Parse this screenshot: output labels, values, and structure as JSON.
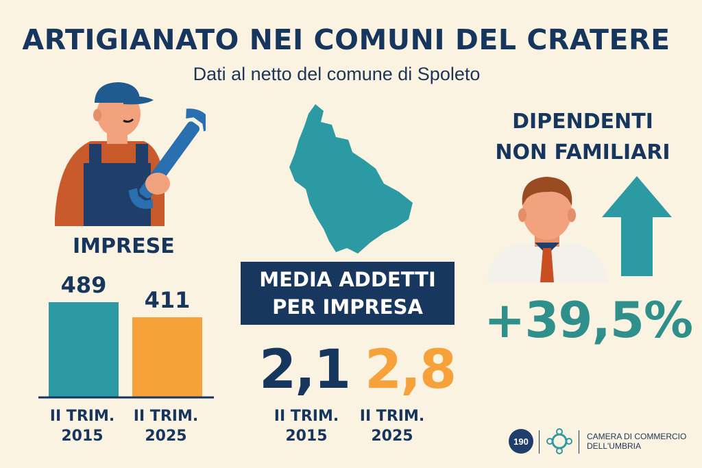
{
  "title": "ARTIGIANATO NEI COMUNI DEL CRATERE",
  "subtitle": "Dati al netto del comune di Spoleto",
  "imprese": {
    "label": "IMPRESE"
  },
  "media": {
    "label_line1": "MEDIA ADDETTI",
    "label_line2": "PER IMPRESA",
    "value_2015": "2,1",
    "value_2025": "2,8",
    "period_2015_line1": "II TRIM.",
    "period_2015_line2": "2015",
    "period_2025_line1": "II TRIM.",
    "period_2025_line2": "2025"
  },
  "dipendenti": {
    "label_line1": "DIPENDENTI",
    "label_line2": "NON FAMILIARI",
    "change": "+39,5%",
    "icon": "arrow-up-icon"
  },
  "footer": {
    "badge_text": "190",
    "org_line1": "CAMERA DI COMMERCIO",
    "org_line2": "DELL'UMBRIA"
  },
  "colors": {
    "navy": "#16365e",
    "teal": "#2b9aa3",
    "orange": "#f7a13a",
    "green_teal": "#2f8f8a",
    "background": "#fbf3e2"
  },
  "chart_data": [
    {
      "type": "bar",
      "title": "IMPRESE",
      "categories": [
        "II TRIM. 2015",
        "II TRIM. 2025"
      ],
      "category_lines": [
        [
          "II TRIM.",
          "2015"
        ],
        [
          "II TRIM.",
          "2025"
        ]
      ],
      "values": [
        489,
        411
      ],
      "value_labels": [
        "489",
        "411"
      ],
      "colors": [
        "#2b9aa3",
        "#f7a13a"
      ],
      "ylim": [
        0,
        489
      ]
    },
    {
      "type": "table",
      "title": "MEDIA ADDETTI PER IMPRESA",
      "categories": [
        "II TRIM. 2015",
        "II TRIM. 2025"
      ],
      "values": [
        2.1,
        2.8
      ]
    }
  ]
}
